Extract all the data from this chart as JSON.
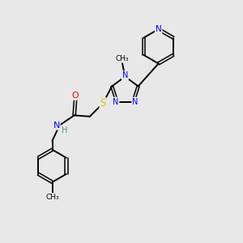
{
  "background_color": "#e8e8e8",
  "bond_color": "#000000",
  "atom_colors": {
    "N": "#0000ff",
    "O": "#ff0000",
    "S": "#cccc00",
    "C": "#000000",
    "H": "#4a9090"
  },
  "figsize": [
    3.0,
    3.0
  ],
  "dpi": 100
}
